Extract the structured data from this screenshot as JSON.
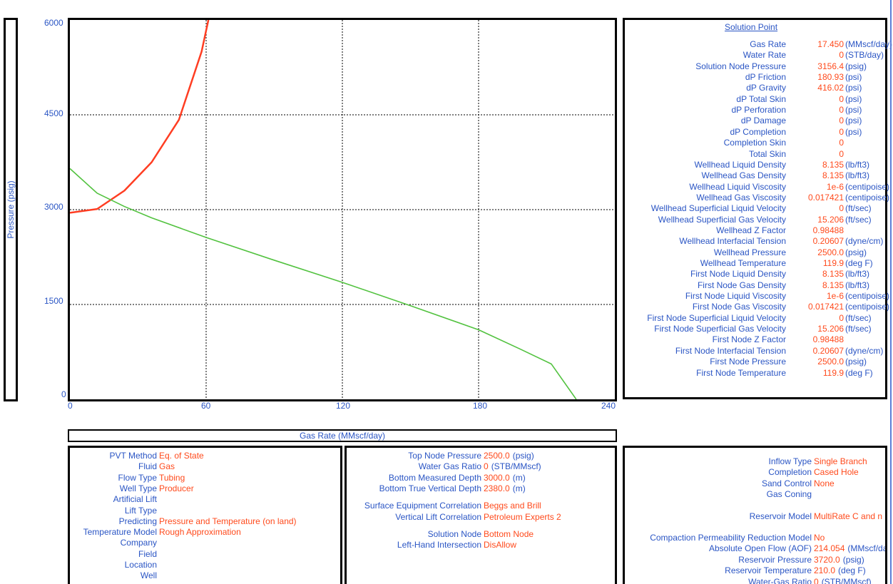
{
  "chart_data": {
    "type": "line",
    "xlabel": "Gas Rate  (MMscf/day)",
    "ylabel": "Pressure  (psig)",
    "xlim": [
      0,
      240
    ],
    "ylim": [
      0,
      6000
    ],
    "x_ticks": [
      "0",
      "60",
      "120",
      "180",
      "240"
    ],
    "y_ticks": [
      "0",
      "1500",
      "3000",
      "4500",
      "6000"
    ],
    "grid": true,
    "series": [
      {
        "color": "#ff3d22",
        "x": [
          0,
          12,
          24,
          36,
          48,
          58,
          61
        ],
        "y": [
          2950,
          3010,
          3300,
          3750,
          4420,
          5500,
          6000
        ]
      },
      {
        "color": "#52c23f",
        "x": [
          0,
          12,
          24,
          36,
          60,
          90,
          120,
          150,
          180,
          198,
          212,
          223
        ],
        "y": [
          3650,
          3260,
          3050,
          2870,
          2560,
          2200,
          1850,
          1480,
          1100,
          800,
          560,
          0
        ]
      }
    ]
  },
  "solution": {
    "title": "Solution Point",
    "rows": [
      {
        "label": "Gas Rate",
        "value": "17.450",
        "unit": "(MMscf/day)"
      },
      {
        "label": "Water Rate",
        "value": "0",
        "unit": "(STB/day)"
      },
      {
        "label": "Solution Node Pressure",
        "value": "3156.4",
        "unit": "(psig)"
      },
      {
        "label": "dP Friction",
        "value": "180.93",
        "unit": "(psi)"
      },
      {
        "label": "dP Gravity",
        "value": "416.02",
        "unit": "(psi)"
      },
      {
        "label": "dP Total Skin",
        "value": "0",
        "unit": "(psi)"
      },
      {
        "label": "dP Perforation",
        "value": "0",
        "unit": "(psi)"
      },
      {
        "label": "dP Damage",
        "value": "0",
        "unit": "(psi)"
      },
      {
        "label": "dP Completion",
        "value": "0",
        "unit": "(psi)"
      },
      {
        "label": "Completion Skin",
        "value": "0",
        "unit": ""
      },
      {
        "label": "Total Skin",
        "value": "0",
        "unit": ""
      },
      {
        "label": "Wellhead Liquid Density",
        "value": "8.135",
        "unit": "(lb/ft3)"
      },
      {
        "label": "Wellhead Gas Density",
        "value": "8.135",
        "unit": "(lb/ft3)"
      },
      {
        "label": "Wellhead Liquid Viscosity",
        "value": "1e-6",
        "unit": "(centipoise)"
      },
      {
        "label": "Wellhead Gas Viscosity",
        "value": "0.017421",
        "unit": "(centipoise)"
      },
      {
        "label": "Wellhead Superficial Liquid Velocity",
        "value": "0",
        "unit": "(ft/sec)"
      },
      {
        "label": "Wellhead Superficial Gas Velocity",
        "value": "15.206",
        "unit": "(ft/sec)"
      },
      {
        "label": "Wellhead Z Factor",
        "value": "0.98488",
        "unit": ""
      },
      {
        "label": "Wellhead Interfacial Tension",
        "value": "0.20607",
        "unit": "(dyne/cm)"
      },
      {
        "label": "Wellhead Pressure",
        "value": "2500.0",
        "unit": "(psig)"
      },
      {
        "label": "Wellhead Temperature",
        "value": "119.9",
        "unit": "(deg F)"
      },
      {
        "label": "First Node Liquid Density",
        "value": "8.135",
        "unit": "(lb/ft3)"
      },
      {
        "label": "First Node Gas Density",
        "value": "8.135",
        "unit": "(lb/ft3)"
      },
      {
        "label": "First Node Liquid Viscosity",
        "value": "1e-6",
        "unit": "(centipoise)"
      },
      {
        "label": "First Node Gas Viscosity",
        "value": "0.017421",
        "unit": "(centipoise)"
      },
      {
        "label": "First Node Superficial Liquid Velocity",
        "value": "0",
        "unit": "(ft/sec)"
      },
      {
        "label": "First Node Superficial Gas Velocity",
        "value": "15.206",
        "unit": "(ft/sec)"
      },
      {
        "label": "First Node Z Factor",
        "value": "0.98488",
        "unit": ""
      },
      {
        "label": "First Node Interfacial Tension",
        "value": "0.20607",
        "unit": "(dyne/cm)"
      },
      {
        "label": "First Node Pressure",
        "value": "2500.0",
        "unit": "(psig)"
      },
      {
        "label": "First Node Temperature",
        "value": "119.9",
        "unit": "(deg F)"
      }
    ]
  },
  "panel1": [
    {
      "label": "PVT Method",
      "value": "Eq. of State"
    },
    {
      "label": "Fluid",
      "value": "Gas"
    },
    {
      "label": "Flow Type",
      "value": "Tubing"
    },
    {
      "label": "Well Type",
      "value": "Producer"
    },
    {
      "label": "Artificial Lift",
      "value": ""
    },
    {
      "label": "Lift Type",
      "value": ""
    },
    {
      "label": "Predicting",
      "value": "Pressure and Temperature (on land)"
    },
    {
      "label": "Temperature Model",
      "value": "Rough Approximation"
    },
    {
      "label": "Company",
      "value": ""
    },
    {
      "label": "Field",
      "value": ""
    },
    {
      "label": "Location",
      "value": ""
    },
    {
      "label": "Well",
      "value": ""
    }
  ],
  "panel2": [
    {
      "label": "Top Node Pressure",
      "value": "2500.0",
      "unit": "(psig)",
      "gap": false
    },
    {
      "label": "Water Gas Ratio",
      "value": "0",
      "unit": "(STB/MMscf)",
      "gap": false
    },
    {
      "label": "Bottom Measured Depth",
      "value": "3000.0",
      "unit": "(m)",
      "gap": false
    },
    {
      "label": "Bottom True Vertical Depth",
      "value": "2380.0",
      "unit": "(m)",
      "gap": false
    },
    {
      "label": "Surface Equipment Correlation",
      "value": "Beggs and Brill",
      "unit": "",
      "gap": true
    },
    {
      "label": "Vertical Lift Correlation",
      "value": "Petroleum Experts 2",
      "unit": "",
      "gap": false
    },
    {
      "label": "Solution Node",
      "value": "Bottom Node",
      "unit": "",
      "gap": true
    },
    {
      "label": "Left-Hand Intersection",
      "value": "DisAllow",
      "unit": "",
      "gap": false
    }
  ],
  "panel3": [
    {
      "label": "Inflow Type",
      "value": "Single Branch",
      "unit": "",
      "gap": false
    },
    {
      "label": "Completion",
      "value": "Cased Hole",
      "unit": "",
      "gap": false
    },
    {
      "label": "Sand Control",
      "value": "None",
      "unit": "",
      "gap": false
    },
    {
      "label": "Gas Coning",
      "value": "",
      "unit": "",
      "gap": false
    },
    {
      "label": "Reservoir Model",
      "value": "MultiRate C and n",
      "unit": "",
      "gap": true
    },
    {
      "label": "Compaction Permeability Reduction Model",
      "value": "No",
      "unit": "",
      "gap": true
    },
    {
      "label": "Absolute Open Flow (AOF)",
      "value": "214.054",
      "unit": "(MMscf/day)",
      "gap": false
    },
    {
      "label": "Reservoir Pressure",
      "value": "3720.0",
      "unit": "(psig)",
      "gap": false
    },
    {
      "label": "Reservoir Temperature",
      "value": "210.0",
      "unit": "(deg F)",
      "gap": false
    },
    {
      "label": "Water-Gas Ratio",
      "value": "0",
      "unit": "(STB/MMscf)",
      "gap": false
    }
  ]
}
